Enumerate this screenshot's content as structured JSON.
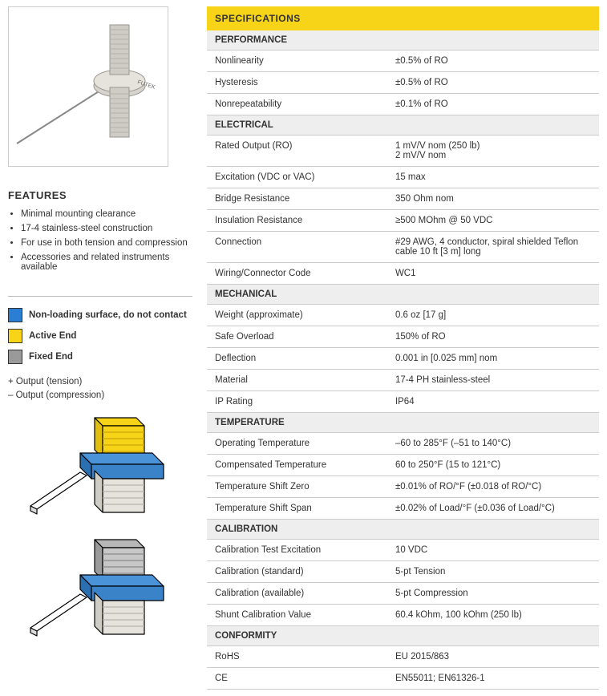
{
  "features": {
    "title": "FEATURES",
    "items": [
      "Minimal mounting clearance",
      "17-4 stainless-steel construction",
      "For use in both tension and compression",
      "Accessories and related instruments available"
    ]
  },
  "legend": {
    "nonloading": {
      "label": "Non-loading surface, do not contact",
      "color": "#2a7fd4",
      "bold": true
    },
    "active": {
      "label": "Active End",
      "color": "#f7d417",
      "bold": true
    },
    "fixed": {
      "label": "Fixed End",
      "color": "#9a9a9a",
      "bold": true
    }
  },
  "output_labels": {
    "tension": "+ Output (tension)",
    "compression": "– Output (compression)"
  },
  "specs": {
    "title": "SPECIFICATIONS",
    "colors": {
      "header_bg": "#f7d417",
      "section_bg": "#eeeeee",
      "border": "#cccccc"
    },
    "sections": [
      {
        "name": "PERFORMANCE",
        "rows": [
          {
            "label": "Nonlinearity",
            "value": "±0.5% of RO"
          },
          {
            "label": "Hysteresis",
            "value": "±0.5% of RO"
          },
          {
            "label": "Nonrepeatability",
            "value": "±0.1% of RO"
          }
        ]
      },
      {
        "name": "ELECTRICAL",
        "rows": [
          {
            "label": "Rated Output (RO)",
            "value": "1 mV/V nom (250 lb)\n2 mV/V nom"
          },
          {
            "label": "Excitation (VDC or VAC)",
            "value": "15 max"
          },
          {
            "label": "Bridge Resistance",
            "value": "350 Ohm nom"
          },
          {
            "label": "Insulation Resistance",
            "value": "≥500 MOhm @ 50 VDC"
          },
          {
            "label": "Connection",
            "value": "#29 AWG, 4 conductor, spiral shielded Teflon cable 10 ft [3 m] long"
          },
          {
            "label": "Wiring/Connector Code",
            "value": "WC1"
          }
        ]
      },
      {
        "name": "MECHANICAL",
        "rows": [
          {
            "label": "Weight (approximate)",
            "value": "0.6 oz [17 g]"
          },
          {
            "label": "Safe Overload",
            "value": "150% of RO"
          },
          {
            "label": "Deflection",
            "value": "0.001 in [0.025 mm] nom"
          },
          {
            "label": "Material",
            "value": "17-4 PH stainless-steel"
          },
          {
            "label": "IP Rating",
            "value": "IP64"
          }
        ]
      },
      {
        "name": "TEMPERATURE",
        "rows": [
          {
            "label": "Operating Temperature",
            "value": "–60 to 285°F (–51 to 140°C)"
          },
          {
            "label": "Compensated Temperature",
            "value": "60 to 250°F (15 to 121°C)"
          },
          {
            "label": "Temperature Shift Zero",
            "value": "±0.01% of RO/°F (±0.018 of RO/°C)"
          },
          {
            "label": "Temperature Shift Span",
            "value": "±0.02% of Load/°F (±0.036 of Load/°C)"
          }
        ]
      },
      {
        "name": "CALIBRATION",
        "rows": [
          {
            "label": "Calibration Test Excitation",
            "value": "10 VDC"
          },
          {
            "label": "Calibration (standard)",
            "value": "5-pt Tension"
          },
          {
            "label": "Calibration (available)",
            "value": "5-pt Compression"
          },
          {
            "label": "Shunt Calibration Value",
            "value": "60.4 kOhm, 100 kOhm (250 lb)"
          }
        ]
      },
      {
        "name": "CONFORMITY",
        "rows": [
          {
            "label": "RoHS",
            "value": "EU 2015/863"
          },
          {
            "label": "CE",
            "value": "EN55011; EN61326-1"
          }
        ]
      }
    ]
  }
}
